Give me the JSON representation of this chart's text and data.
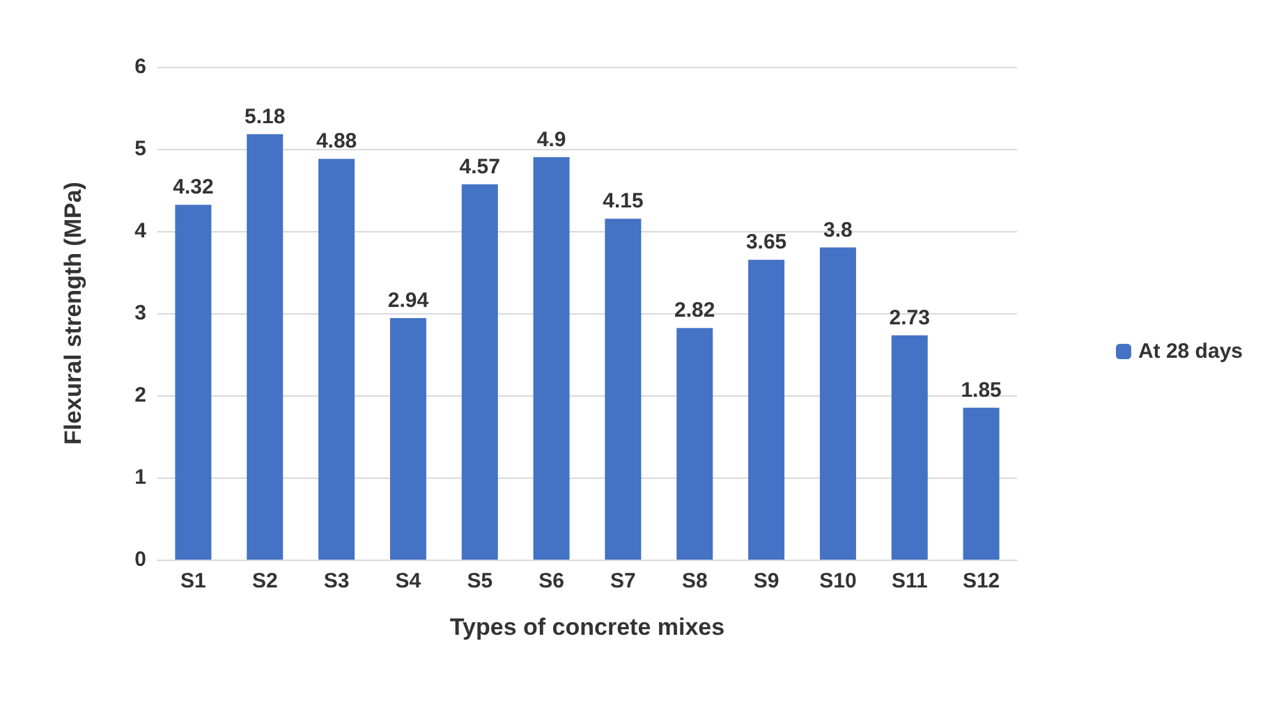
{
  "chart_data": {
    "type": "bar",
    "xlabel": "Types of concrete mixes",
    "ylabel": "Flexural strength (MPa)",
    "categories": [
      "S1",
      "S2",
      "S3",
      "S4",
      "S5",
      "S6",
      "S7",
      "S8",
      "S9",
      "S10",
      "S11",
      "S12"
    ],
    "series": [
      {
        "name": "At 28 days",
        "color": "#4472c4",
        "values": [
          4.32,
          5.18,
          4.88,
          2.94,
          4.57,
          4.9,
          4.15,
          2.82,
          3.65,
          3.8,
          2.73,
          1.85
        ]
      }
    ],
    "ylim": [
      0,
      6
    ],
    "yticks": [
      0,
      1,
      2,
      3,
      4,
      5,
      6
    ],
    "grid": "y",
    "legend": "right",
    "data_labels": true
  }
}
